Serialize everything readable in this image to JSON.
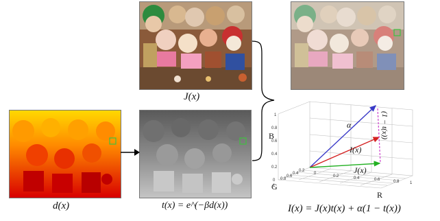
{
  "labels": {
    "clear_image": "J(x)",
    "depth_map": "d(x)",
    "transmission": "t(x) = e^(−βd(x))",
    "model": "I(x) = J(x)t(x) + α(1 − t(x))"
  },
  "plot": {
    "axis_b": "B",
    "axis_g": "G",
    "axis_r": "R",
    "vector_alpha": "α",
    "vector_i": "I(x)",
    "vector_j": "J(x)",
    "dashed_label": "(1 − t(x))",
    "ticks_b": [
      "0",
      "0.2",
      "0.4",
      "0.6",
      "0.8",
      "1"
    ],
    "ticks_g": [
      "0",
      "0.2",
      "0.4",
      "0.6",
      "0.8",
      "1"
    ],
    "ticks_r": [
      "0",
      "0.2",
      "0.4",
      "0.6",
      "0.8",
      "1"
    ]
  },
  "colors": {
    "alpha_vector": "#3a3ac8",
    "i_vector": "#d42020",
    "j_vector": "#22b022",
    "dashed": "#d050d0",
    "marker_square_color": "#40c040"
  }
}
